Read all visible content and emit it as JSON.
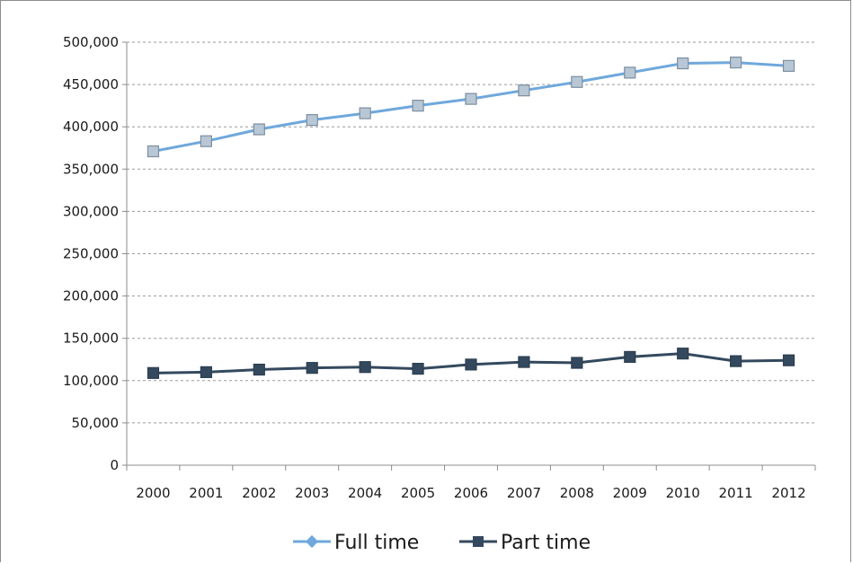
{
  "chart_data": {
    "type": "line",
    "title": "",
    "xlabel": "",
    "ylabel": "",
    "categories": [
      "2000",
      "2001",
      "2002",
      "2003",
      "2004",
      "2005",
      "2006",
      "2007",
      "2008",
      "2009",
      "2010",
      "2011",
      "2012"
    ],
    "ylim": [
      0,
      500000
    ],
    "yticks": [
      0,
      50000,
      100000,
      150000,
      200000,
      250000,
      300000,
      350000,
      400000,
      450000,
      500000
    ],
    "ytick_labels": [
      "0",
      "50,000",
      "100,000",
      "150,000",
      "200,000",
      "250,000",
      "300,000",
      "350,000",
      "400,000",
      "450,000",
      "500,000"
    ],
    "grid": true,
    "legend_position": "bottom",
    "series": [
      {
        "name": "Full time",
        "color": "#6fa8dc",
        "marker": "square",
        "values": [
          371000,
          383000,
          397000,
          408000,
          416000,
          425000,
          433000,
          443000,
          453000,
          464000,
          475000,
          476000,
          472000
        ]
      },
      {
        "name": "Part time",
        "color": "#34495e",
        "marker": "square",
        "values": [
          109000,
          110000,
          113000,
          115000,
          116000,
          114000,
          119000,
          122000,
          121000,
          128000,
          132000,
          123000,
          124000
        ]
      }
    ]
  }
}
